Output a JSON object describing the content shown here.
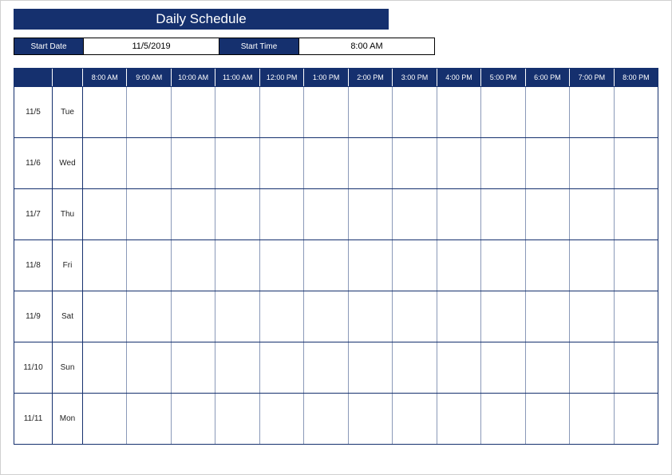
{
  "title": "Daily Schedule",
  "controls": {
    "start_date_label": "Start Date",
    "start_date_value": "11/5/2019",
    "start_time_label": "Start Time",
    "start_time_value": "8:00 AM"
  },
  "time_columns": [
    "8:00 AM",
    "9:00 AM",
    "10:00 AM",
    "11:00 AM",
    "12:00 PM",
    "1:00 PM",
    "2:00 PM",
    "3:00 PM",
    "4:00 PM",
    "5:00 PM",
    "6:00 PM",
    "7:00 PM",
    "8:00 PM"
  ],
  "rows": [
    {
      "date": "11/5",
      "day": "Tue"
    },
    {
      "date": "11/6",
      "day": "Wed"
    },
    {
      "date": "11/7",
      "day": "Thu"
    },
    {
      "date": "11/8",
      "day": "Fri"
    },
    {
      "date": "11/9",
      "day": "Sat"
    },
    {
      "date": "11/10",
      "day": "Sun"
    },
    {
      "date": "11/11",
      "day": "Mon"
    }
  ],
  "colors": {
    "primary": "#15306e",
    "cell_border": "#8a99b8",
    "page_border": "#d0d0d0",
    "background": "#ffffff",
    "text_on_primary": "#ffffff"
  }
}
